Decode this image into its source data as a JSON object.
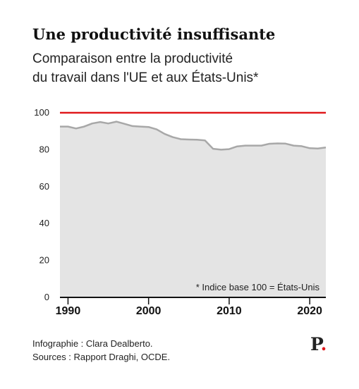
{
  "header": {
    "title": "Une productivité insuffisante",
    "subtitle_line1": "Comparaison entre la productivité",
    "subtitle_line2": "du travail dans l'UE et aux États-Unis*"
  },
  "footer": {
    "credit": "Infographie : Clara Dealberto.",
    "sources": "Sources : Rapport Draghi, OCDE."
  },
  "brand": {
    "letter": "P",
    "dot": "."
  },
  "colors": {
    "reference_line": "#e0191c",
    "area_fill": "#e4e4e4",
    "series_line": "#a8a8a8"
  },
  "chart_data": {
    "type": "area",
    "title": "",
    "xlabel": "",
    "ylabel": "",
    "xlim": [
      1989,
      2022
    ],
    "ylim": [
      0,
      100
    ],
    "x_ticks": [
      "1990",
      "2000",
      "2010",
      "2020"
    ],
    "y_ticks": [
      "0",
      "20",
      "40",
      "60",
      "80",
      "100"
    ],
    "annotation": "* Indice base 100 = États-Unis",
    "reference_line": {
      "y": 100
    },
    "grid": false,
    "x": [
      1989,
      1990,
      1991,
      1992,
      1993,
      1994,
      1995,
      1996,
      1997,
      1998,
      1999,
      2000,
      2001,
      2002,
      2003,
      2004,
      2005,
      2006,
      2007,
      2008,
      2009,
      2010,
      2011,
      2012,
      2013,
      2014,
      2015,
      2016,
      2017,
      2018,
      2019,
      2020,
      2021,
      2022
    ],
    "y": [
      92.5,
      92.5,
      91.5,
      92.5,
      94.2,
      95.0,
      94.2,
      95.2,
      94.0,
      92.8,
      92.5,
      92.3,
      91.0,
      88.5,
      86.8,
      85.7,
      85.5,
      85.4,
      85.0,
      80.5,
      80.0,
      80.3,
      81.8,
      82.2,
      82.2,
      82.2,
      83.2,
      83.4,
      83.3,
      82.2,
      81.9,
      80.8,
      80.6,
      81.2
    ]
  }
}
